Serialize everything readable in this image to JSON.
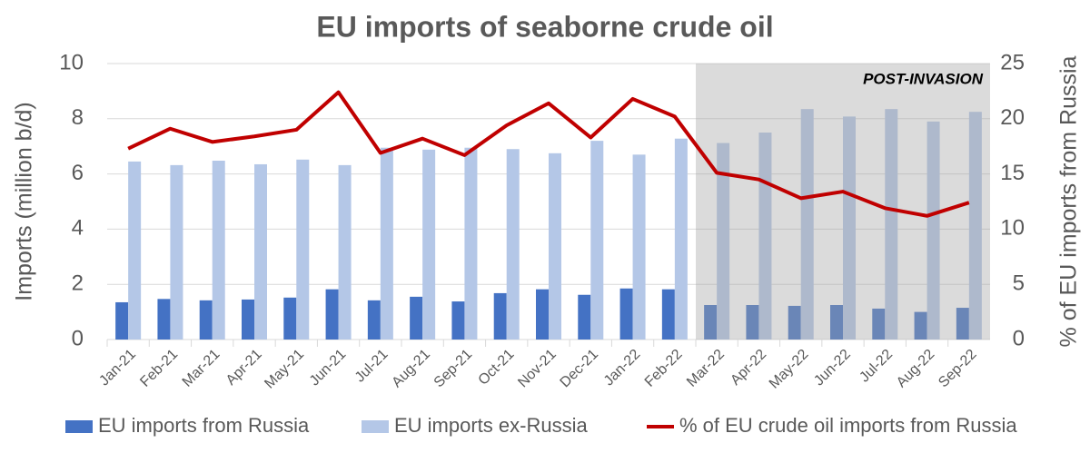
{
  "chart_data": {
    "type": "bar-line",
    "title": "EU imports of seaborne crude oil",
    "y_label": "Imports (million b/d)",
    "y2_label": "% of EU imports from Russia",
    "categories": [
      "Jan-21",
      "Feb-21",
      "Mar-21",
      "Apr-21",
      "May-21",
      "Jun-21",
      "Jul-21",
      "Aug-21",
      "Sep-21",
      "Oct-21",
      "Nov-21",
      "Dec-21",
      "Jan-22",
      "Feb-22",
      "Mar-22",
      "Apr-22",
      "May-22",
      "Jun-22",
      "Jul-22",
      "Aug-22",
      "Sep-22"
    ],
    "series": [
      {
        "name": "EU imports from Russia",
        "type": "bar",
        "color": "#4472c4",
        "values": [
          1.35,
          1.47,
          1.42,
          1.45,
          1.52,
          1.82,
          1.42,
          1.55,
          1.38,
          1.68,
          1.82,
          1.62,
          1.85,
          1.82,
          1.25,
          1.25,
          1.22,
          1.25,
          1.12,
          1.0,
          1.15
        ]
      },
      {
        "name": "EU imports ex-Russia",
        "type": "bar",
        "color": "#b4c7e7",
        "values": [
          6.45,
          6.32,
          6.48,
          6.35,
          6.52,
          6.32,
          6.95,
          6.88,
          6.95,
          6.9,
          6.75,
          7.2,
          6.7,
          7.28,
          7.12,
          7.5,
          8.35,
          8.08,
          8.35,
          7.9,
          8.25
        ]
      },
      {
        "name": "% of EU crude oil imports from Russia",
        "type": "line",
        "axis": "y2",
        "color": "#c00000",
        "values": [
          17.3,
          19.1,
          17.9,
          18.4,
          19.0,
          22.4,
          16.9,
          18.2,
          16.7,
          19.4,
          21.4,
          18.3,
          21.8,
          20.2,
          15.1,
          14.5,
          12.8,
          13.4,
          11.9,
          11.2,
          12.4
        ]
      }
    ],
    "ylim": [
      0,
      10
    ],
    "yticks": [
      0,
      2,
      4,
      6,
      8,
      10
    ],
    "y2lim": [
      0,
      25
    ],
    "y2ticks": [
      0,
      5,
      10,
      15,
      20,
      25
    ],
    "grid": true,
    "legend": "bottom",
    "shaded_region": {
      "text": "POST-INVASION",
      "from": "Mar-22",
      "to": "Sep-22",
      "color": "#a6a6a6"
    }
  }
}
